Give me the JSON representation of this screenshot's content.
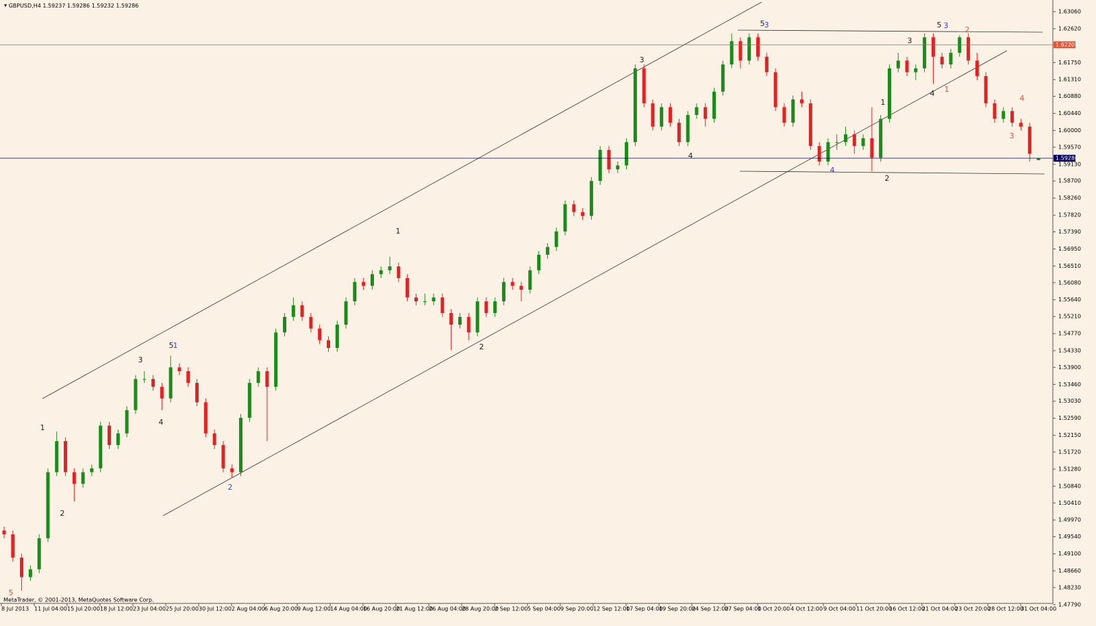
{
  "chart_data": {
    "type": "candlestick",
    "title": "GBPUSD,H4",
    "header_values": [
      "1.59237",
      "1.59286",
      "1.59232",
      "1.59286"
    ],
    "footer": "MetaTrader, © 2001-2013, MetaQuotes Software Corp.",
    "up_color": "#1b8c1b",
    "down_color": "#e02323",
    "ylim": [
      1.4784,
      1.6336
    ],
    "yticks": [
      {
        "value": 1.6306,
        "label": "1.63060"
      },
      {
        "value": 1.6262,
        "label": "1.62620"
      },
      {
        "value": 1.6175,
        "label": "1.61750"
      },
      {
        "value": 1.6131,
        "label": "1.61310"
      },
      {
        "value": 1.6088,
        "label": "1.60880"
      },
      {
        "value": 1.6044,
        "label": "1.60440"
      },
      {
        "value": 1.6,
        "label": "1.60000"
      },
      {
        "value": 1.5957,
        "label": "1.59570"
      },
      {
        "value": 1.5913,
        "label": "1.59130"
      },
      {
        "value": 1.587,
        "label": "1.58700"
      },
      {
        "value": 1.5826,
        "label": "1.58260"
      },
      {
        "value": 1.5782,
        "label": "1.57820"
      },
      {
        "value": 1.5739,
        "label": "1.57390"
      },
      {
        "value": 1.5695,
        "label": "1.56950"
      },
      {
        "value": 1.5651,
        "label": "1.56510"
      },
      {
        "value": 1.5608,
        "label": "1.56080"
      },
      {
        "value": 1.5564,
        "label": "1.55640"
      },
      {
        "value": 1.5521,
        "label": "1.55210"
      },
      {
        "value": 1.5477,
        "label": "1.54770"
      },
      {
        "value": 1.5433,
        "label": "1.54330"
      },
      {
        "value": 1.539,
        "label": "1.53900"
      },
      {
        "value": 1.5346,
        "label": "1.53460"
      },
      {
        "value": 1.5303,
        "label": "1.53030"
      },
      {
        "value": 1.5259,
        "label": "1.52590"
      },
      {
        "value": 1.5215,
        "label": "1.52150"
      },
      {
        "value": 1.5172,
        "label": "1.51720"
      },
      {
        "value": 1.5128,
        "label": "1.51280"
      },
      {
        "value": 1.5084,
        "label": "1.50840"
      },
      {
        "value": 1.5041,
        "label": "1.50410"
      },
      {
        "value": 1.4997,
        "label": "1.49970"
      },
      {
        "value": 1.4954,
        "label": "1.49540"
      },
      {
        "value": 1.491,
        "label": "1.49100"
      },
      {
        "value": 1.4866,
        "label": "1.48660"
      },
      {
        "value": 1.4823,
        "label": "1.48230"
      },
      {
        "value": 1.4779,
        "label": "1.47790"
      }
    ],
    "level_lines": [
      {
        "value": 1.62207,
        "color": "#e0533a"
      },
      {
        "value": 1.59286,
        "color": "#00005a"
      }
    ],
    "x_labels": [
      "8 Jul 2013",
      "11 Jul 04:00",
      "15 Jul 20:00",
      "18 Jul 12:00",
      "23 Jul 04:00",
      "25 Jul 20:00",
      "30 Jul 12:00",
      "2 Aug 04:00",
      "6 Aug 20:00",
      "9 Aug 12:00",
      "14 Aug 04:00",
      "16 Aug 20:00",
      "21 Aug 12:00",
      "26 Aug 04:00",
      "28 Aug 20:00",
      "2 Sep 12:00",
      "5 Sep 04:00",
      "9 Sep 20:00",
      "12 Sep 12:00",
      "17 Sep 04:00",
      "19 Sep 20:00",
      "24 Sep 12:00",
      "27 Sep 04:00",
      "1 Oct 20:00",
      "4 Oct 12:00",
      "9 Oct 04:00",
      "11 Oct 20:00",
      "16 Oct 12:00",
      "21 Oct 04:00",
      "23 Oct 20:00",
      "28 Oct 12:00",
      "31 Oct 04:00"
    ],
    "ohlc": [
      [
        1.497,
        1.498,
        1.495,
        1.496
      ],
      [
        1.496,
        1.497,
        1.489,
        1.49
      ],
      [
        1.49,
        1.491,
        1.4815,
        1.485
      ],
      [
        1.485,
        1.488,
        1.484,
        1.487
      ],
      [
        1.487,
        1.496,
        1.486,
        1.495
      ],
      [
        1.495,
        1.513,
        1.494,
        1.512
      ],
      [
        1.512,
        1.5225,
        1.511,
        1.52
      ],
      [
        1.52,
        1.521,
        1.511,
        1.512
      ],
      [
        1.512,
        1.513,
        1.5045,
        1.509
      ],
      [
        1.509,
        1.513,
        1.508,
        1.512
      ],
      [
        1.512,
        1.514,
        1.511,
        1.513
      ],
      [
        1.513,
        1.525,
        1.512,
        1.524
      ],
      [
        1.524,
        1.525,
        1.518,
        1.519
      ],
      [
        1.519,
        1.523,
        1.518,
        1.522
      ],
      [
        1.522,
        1.529,
        1.521,
        1.528
      ],
      [
        1.528,
        1.537,
        1.527,
        1.536
      ],
      [
        1.536,
        1.538,
        1.535,
        1.536
      ],
      [
        1.536,
        1.537,
        1.533,
        1.534
      ],
      [
        1.534,
        1.535,
        1.528,
        1.531
      ],
      [
        1.531,
        1.542,
        1.53,
        1.539
      ],
      [
        1.539,
        1.54,
        1.537,
        1.538
      ],
      [
        1.538,
        1.539,
        1.534,
        1.535
      ],
      [
        1.535,
        1.536,
        1.529,
        1.53
      ],
      [
        1.53,
        1.531,
        1.521,
        1.522
      ],
      [
        1.522,
        1.523,
        1.518,
        1.519
      ],
      [
        1.519,
        1.52,
        1.512,
        1.513
      ],
      [
        1.513,
        1.514,
        1.5105,
        1.512
      ],
      [
        1.512,
        1.527,
        1.511,
        1.526
      ],
      [
        1.526,
        1.536,
        1.525,
        1.535
      ],
      [
        1.535,
        1.539,
        1.534,
        1.538
      ],
      [
        1.538,
        1.539,
        1.52,
        1.534
      ],
      [
        1.534,
        1.549,
        1.533,
        1.548
      ],
      [
        1.548,
        1.553,
        1.547,
        1.552
      ],
      [
        1.552,
        1.557,
        1.551,
        1.555
      ],
      [
        1.555,
        1.556,
        1.551,
        1.552
      ],
      [
        1.552,
        1.553,
        1.548,
        1.549
      ],
      [
        1.549,
        1.55,
        1.545,
        1.546
      ],
      [
        1.546,
        1.547,
        1.543,
        1.544
      ],
      [
        1.544,
        1.551,
        1.543,
        1.55
      ],
      [
        1.55,
        1.557,
        1.549,
        1.556
      ],
      [
        1.556,
        1.562,
        1.555,
        1.561
      ],
      [
        1.561,
        1.562,
        1.559,
        1.56
      ],
      [
        1.56,
        1.564,
        1.559,
        1.563
      ],
      [
        1.563,
        1.565,
        1.562,
        1.564
      ],
      [
        1.564,
        1.5675,
        1.563,
        1.565
      ],
      [
        1.565,
        1.566,
        1.561,
        1.562
      ],
      [
        1.562,
        1.563,
        1.556,
        1.557
      ],
      [
        1.557,
        1.558,
        1.555,
        1.556
      ],
      [
        1.556,
        1.558,
        1.555,
        1.556
      ],
      [
        1.556,
        1.558,
        1.555,
        1.557
      ],
      [
        1.557,
        1.558,
        1.552,
        1.553
      ],
      [
        1.553,
        1.554,
        1.5435,
        1.55
      ],
      [
        1.55,
        1.553,
        1.549,
        1.552
      ],
      [
        1.552,
        1.553,
        1.546,
        1.548
      ],
      [
        1.548,
        1.557,
        1.547,
        1.556
      ],
      [
        1.556,
        1.557,
        1.552,
        1.553
      ],
      [
        1.553,
        1.557,
        1.552,
        1.556
      ],
      [
        1.556,
        1.562,
        1.555,
        1.561
      ],
      [
        1.561,
        1.562,
        1.559,
        1.56
      ],
      [
        1.56,
        1.561,
        1.556,
        1.559
      ],
      [
        1.559,
        1.565,
        1.558,
        1.564
      ],
      [
        1.564,
        1.569,
        1.563,
        1.568
      ],
      [
        1.568,
        1.571,
        1.567,
        1.57
      ],
      [
        1.57,
        1.575,
        1.569,
        1.574
      ],
      [
        1.574,
        1.582,
        1.573,
        1.581
      ],
      [
        1.581,
        1.582,
        1.578,
        1.579
      ],
      [
        1.579,
        1.58,
        1.577,
        1.578
      ],
      [
        1.578,
        1.588,
        1.577,
        1.587
      ],
      [
        1.587,
        1.596,
        1.586,
        1.595
      ],
      [
        1.595,
        1.596,
        1.589,
        1.59
      ],
      [
        1.59,
        1.592,
        1.589,
        1.591
      ],
      [
        1.591,
        1.598,
        1.59,
        1.597
      ],
      [
        1.597,
        1.617,
        1.596,
        1.616
      ],
      [
        1.616,
        1.617,
        1.606,
        1.607
      ],
      [
        1.607,
        1.608,
        1.6,
        1.601
      ],
      [
        1.601,
        1.607,
        1.6,
        1.606
      ],
      [
        1.606,
        1.607,
        1.601,
        1.602
      ],
      [
        1.602,
        1.603,
        1.596,
        1.597
      ],
      [
        1.597,
        1.605,
        1.596,
        1.604
      ],
      [
        1.604,
        1.607,
        1.603,
        1.606
      ],
      [
        1.606,
        1.607,
        1.601,
        1.603
      ],
      [
        1.603,
        1.611,
        1.602,
        1.61
      ],
      [
        1.61,
        1.618,
        1.609,
        1.617
      ],
      [
        1.617,
        1.625,
        1.616,
        1.623
      ],
      [
        1.623,
        1.624,
        1.616,
        1.618
      ],
      [
        1.618,
        1.625,
        1.617,
        1.624
      ],
      [
        1.624,
        1.625,
        1.618,
        1.619
      ],
      [
        1.619,
        1.62,
        1.614,
        1.615
      ],
      [
        1.615,
        1.616,
        1.605,
        1.606
      ],
      [
        1.606,
        1.607,
        1.601,
        1.602
      ],
      [
        1.602,
        1.609,
        1.601,
        1.608
      ],
      [
        1.608,
        1.61,
        1.606,
        1.607
      ],
      [
        1.607,
        1.608,
        1.595,
        1.596
      ],
      [
        1.596,
        1.597,
        1.591,
        1.592
      ],
      [
        1.592,
        1.598,
        1.591,
        1.597
      ],
      [
        1.597,
        1.599,
        1.595,
        1.597
      ],
      [
        1.597,
        1.601,
        1.596,
        1.599
      ],
      [
        1.599,
        1.6,
        1.594,
        1.596
      ],
      [
        1.596,
        1.599,
        1.595,
        1.598
      ],
      [
        1.598,
        1.606,
        1.5895,
        1.593
      ],
      [
        1.593,
        1.604,
        1.592,
        1.603
      ],
      [
        1.603,
        1.617,
        1.602,
        1.616
      ],
      [
        1.616,
        1.62,
        1.615,
        1.618
      ],
      [
        1.618,
        1.619,
        1.614,
        1.615
      ],
      [
        1.615,
        1.617,
        1.613,
        1.616
      ],
      [
        1.616,
        1.625,
        1.615,
        1.624
      ],
      [
        1.624,
        1.625,
        1.612,
        1.619
      ],
      [
        1.619,
        1.62,
        1.616,
        1.617
      ],
      [
        1.617,
        1.621,
        1.616,
        1.62
      ],
      [
        1.62,
        1.6245,
        1.619,
        1.624
      ],
      [
        1.624,
        1.625,
        1.617,
        1.618
      ],
      [
        1.618,
        1.62,
        1.613,
        1.614
      ],
      [
        1.614,
        1.615,
        1.606,
        1.607
      ],
      [
        1.607,
        1.608,
        1.602,
        1.603
      ],
      [
        1.603,
        1.606,
        1.602,
        1.605
      ],
      [
        1.605,
        1.606,
        1.601,
        1.602
      ],
      [
        1.602,
        1.603,
        1.6,
        1.601
      ],
      [
        1.601,
        1.602,
        1.592,
        1.594
      ],
      [
        1.59237,
        1.59286,
        1.59232,
        1.59286
      ]
    ],
    "wave_labels": [
      {
        "text": "5",
        "color": "#e0533a"
      },
      {
        "text": "1",
        "color": "#222"
      },
      {
        "text": "2",
        "color": "#222"
      },
      {
        "text": "3",
        "color": "#222"
      },
      {
        "text": "4",
        "color": "#222"
      },
      {
        "text": "5",
        "color": "#222"
      },
      {
        "text": "1",
        "color": "#3344dd"
      },
      {
        "text": "2",
        "color": "#3344dd"
      },
      {
        "text": "1",
        "color": "#222"
      },
      {
        "text": "2",
        "color": "#222"
      },
      {
        "text": "3",
        "color": "#222"
      },
      {
        "text": "4",
        "color": "#222"
      },
      {
        "text": "5",
        "color": "#222"
      },
      {
        "text": "3",
        "color": "#3344dd"
      },
      {
        "text": "4",
        "color": "#3344dd"
      },
      {
        "text": "1",
        "color": "#222"
      },
      {
        "text": "2",
        "color": "#222"
      },
      {
        "text": "3",
        "color": "#222"
      },
      {
        "text": "4",
        "color": "#222"
      },
      {
        "text": "5",
        "color": "#222"
      },
      {
        "text": "3",
        "color": "#3344dd"
      },
      {
        "text": "1",
        "color": "#e0533a"
      },
      {
        "text": "2",
        "color": "#e0533a"
      },
      {
        "text": "3",
        "color": "#e0533a"
      },
      {
        "text": "4",
        "color": "#e0533a"
      }
    ]
  }
}
